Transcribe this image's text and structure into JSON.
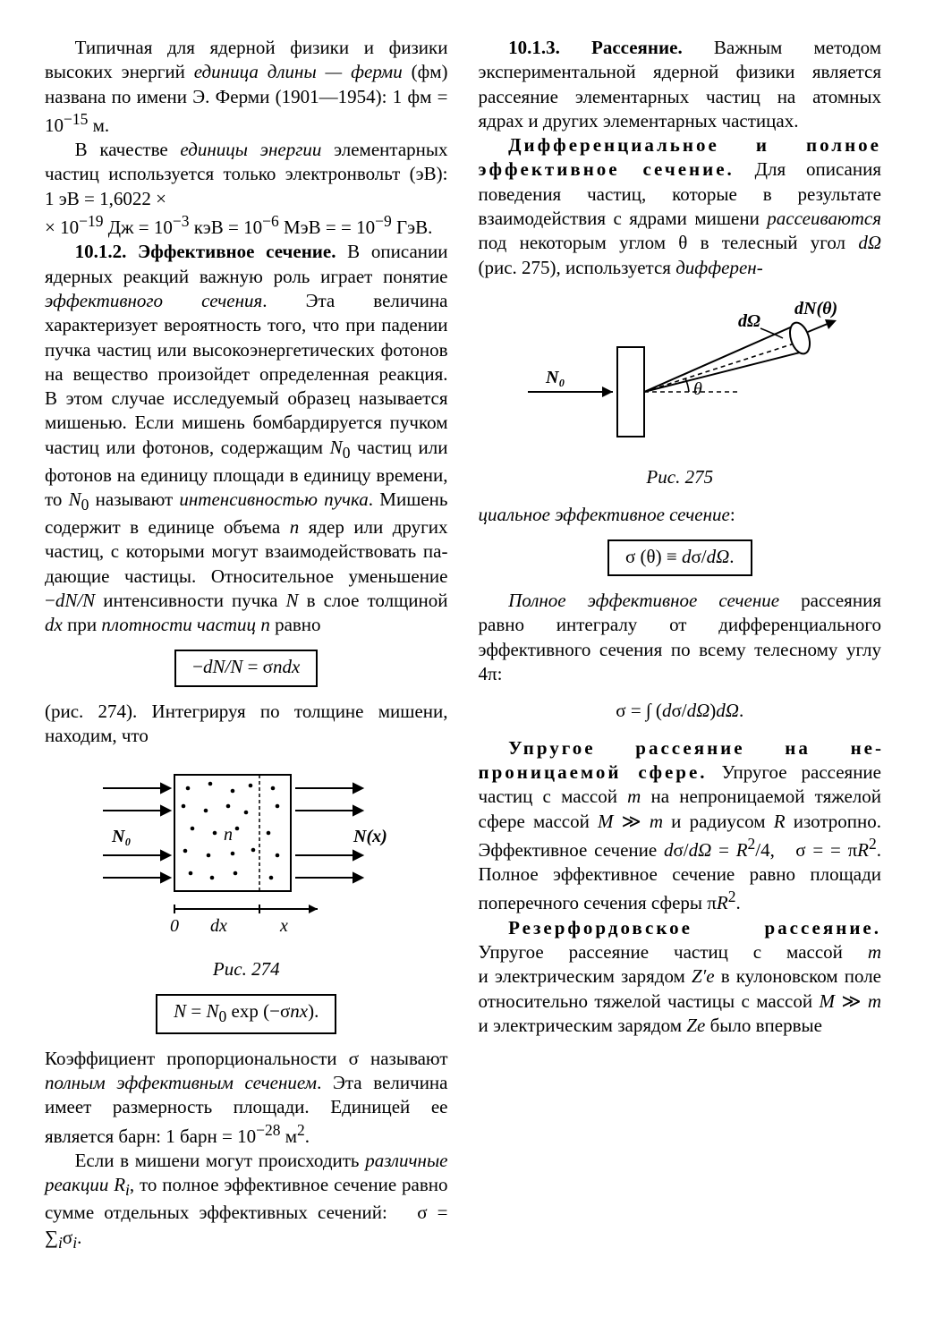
{
  "left": {
    "p1": "Типичная для ядерной физики и фи­зики высоких энергий <i>единица дли­ны — ферми</i> (фм) названа по имени Э. Ферми (1901—1954): 1 фм = 10<sup>−15</sup> м.",
    "p2": "В качестве <i>единицы энергии</i> элемен­тарных частиц используется только электронвольт (эВ): 1 эВ = 1,6022 ×<br>× 10<sup>−19</sup> Дж = 10<sup>−3</sup> кэВ = 10<sup>−6</sup> МэВ = = 10<sup>−9</sup> ГэВ.",
    "p3": "<b>10.1.2. Эффективное сечение.</b> В опи­сании ядерных реакций важную роль играет понятие <i>эффективного сечения</i>. Эта величина характеризует вероят­ность того, что при падении пучка частиц или высокоэнергетических фотонов на вещество произойдет определенная ре­акция. В этом случае исследуемый об­разец называется мишенью. Если ми­шень бомбардируется пучком частиц или фотонов, содержащим <i>N</i><sub>0</sub> частиц или фотонов на единицу площади в единицу времени, то <i>N</i><sub>0</sub> называют <i>интенсив­ностью пучка</i>. Мишень содержит в еди­нице объема <i>n</i> ядер или других частиц, с которыми могут взаимодействовать па­дающие частицы. Относительное умень­шение −<i>dN/N</i> интенсивности пучка <i>N</i> в слое толщиной <i>dx</i> при <i>плотности час­тиц</i> <i>n</i> равно",
    "eq1": "−<i>dN/N</i> = σ<i>ndx</i>",
    "p4": "(рис. 274). Интегрируя по толщине ми­шени, находим, что",
    "fig274_caption": "Рис. 274",
    "eq2": "<i>N</i> = <i>N</i><sub>0</sub> exp (−σ<i>nx</i>).",
    "p5": "Коэффициент пропорциональности σ называют <i>полным эффективным сечени­ем</i>. Эта величина имеет размерность площади. Единицей ее является барн: 1 барн = 10<sup>−28</sup> м<sup>2</sup>.",
    "fig274_labels": {
      "n0": "N₀",
      "nx": "N(x)",
      "zero": "0",
      "dx": "dx",
      "x": "x",
      "n": "n"
    }
  },
  "right": {
    "p1": "Если в мишени могут происходить <i>различные реакции R<sub>i</sub></i>, то полное эф­фективное сечение равно сумме отдель­ных эффективных сечений: &nbsp; σ = ∑<sub><i>i</i></sub>σ<sub><i>i</i></sub>.",
    "p2": "<b>10.1.3. Рассеяние.</b> Важным методом экспериментальной ядерной физики яв­ляется рассеяние элементарных час­тиц на атомных ядрах и других элемен­тарных частицах.",
    "p3": "<span class='spaced'><b>Дифференциальное и пол­ное эффективное сече­ние.</b></span> Для описания поведения час­тиц, которые в результате взаимодей­ствия с ядрами мишени <i>рассеиваются</i> под некоторым углом θ в телесный угол <i>dΩ</i> (рис. 275), используется <i>дифферен-</i>",
    "fig275_caption": "Рис. 275",
    "p4": "<i>циальное эффективное сечение</i>:",
    "eq3": "σ (θ) ≡ <i>d</i>σ/<i>dΩ</i>.",
    "p5": "<i>Полное эффективное сечение</i> рассея­ния равно интегралу от дифференци­ального эффективного сечения по все­му телесному углу 4π:",
    "eq4": "σ = ∫ (<i>d</i>σ/<i>dΩ</i>)<i>dΩ</i>.",
    "p6": "<span class='spaced'><b>Упругое рассеяние на не­проницаемой сфере.</b></span> Упру­гое рассеяние частиц с массой <i>m</i> на не­проницаемой тяжелой сфере массой <i>M</i> ≫ <i>m</i> и радиусом <i>R</i> изотропно. Эф­фективное сечение <i>d</i>σ/<i>dΩ</i> = <i>R</i><sup>2</sup>/4, &nbsp; σ = = π<i>R</i><sup>2</sup>. Полное эффективное сечение равно площади поперечного сечения сферы π<i>R</i><sup>2</sup>.",
    "p7": "<span class='spaced'><b>Резерфордовское рассе­яние.</b></span> Упругое рассеяние частиц с массой <i>m</i> и электрическим зарядом <i>Z′e</i> в кулоновском поле относительно тя­желой частицы с массой <i>M</i> ≫ <i>m</i> и электрическим зарядом <i>Ze</i> было впервые",
    "fig275_labels": {
      "n0": "N₀",
      "theta": "θ",
      "dOmega": "dΩ",
      "dNtheta": "dN(θ)"
    }
  }
}
